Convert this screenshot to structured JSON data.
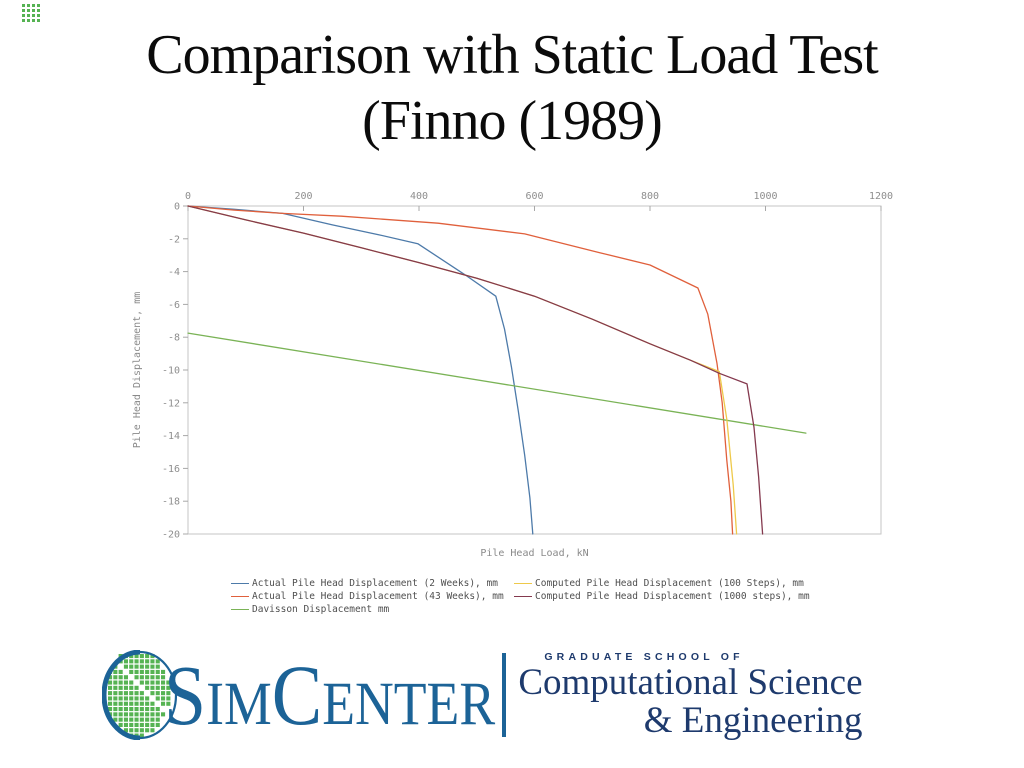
{
  "slide": {
    "title_line1": "Comparison with Static Load Test",
    "title_line2": "(Finno (1989)"
  },
  "chart_data": {
    "type": "line",
    "title": "",
    "xlabel": "Pile Head Load, kN",
    "ylabel": "Pile Head Displacement, mm",
    "xlim": [
      0,
      1200
    ],
    "ylim": [
      -20,
      0
    ],
    "x_ticks": [
      0,
      200,
      400,
      600,
      800,
      1000,
      1200
    ],
    "y_ticks": [
      0,
      -2,
      -4,
      -6,
      -8,
      -10,
      -12,
      -14,
      -16,
      -18,
      -20
    ],
    "grid": false,
    "x_axis_position": "top",
    "legend_position": "bottom",
    "series": [
      {
        "name": "Actual Pile Head Displacement (2 Weeks), mm",
        "color": "#4d7aa9",
        "points": [
          [
            0,
            0
          ],
          [
            80,
            -0.2
          ],
          [
            164,
            -0.45
          ],
          [
            250,
            -1.15
          ],
          [
            330,
            -1.75
          ],
          [
            398,
            -2.3
          ],
          [
            480,
            -4.2
          ],
          [
            533,
            -5.5
          ],
          [
            548,
            -7.5
          ],
          [
            560,
            -9.8
          ],
          [
            572,
            -12.5
          ],
          [
            583,
            -15.2
          ],
          [
            592,
            -17.8
          ],
          [
            597,
            -20
          ]
        ]
      },
      {
        "name": "Actual Pile Head Displacement (43 Weeks), mm",
        "color": "#e0603c",
        "points": [
          [
            0,
            0
          ],
          [
            80,
            -0.25
          ],
          [
            164,
            -0.45
          ],
          [
            266,
            -0.62
          ],
          [
            433,
            -1.05
          ],
          [
            583,
            -1.7
          ],
          [
            713,
            -2.85
          ],
          [
            800,
            -3.6
          ],
          [
            883,
            -5.0
          ],
          [
            900,
            -6.6
          ],
          [
            916,
            -9.6
          ],
          [
            925,
            -12
          ],
          [
            933,
            -15.5
          ],
          [
            940,
            -18
          ],
          [
            943,
            -20
          ]
        ]
      },
      {
        "name": "Davisson Displacement mm",
        "color": "#7ab356",
        "points": [
          [
            0,
            -7.75
          ],
          [
            1070,
            -13.85
          ]
        ]
      },
      {
        "name": "Computed Pile Head Displacement (100 Steps), mm",
        "color": "#eec94a",
        "points": [
          [
            0,
            0
          ],
          [
            100,
            -0.85
          ],
          [
            200,
            -1.65
          ],
          [
            300,
            -2.55
          ],
          [
            400,
            -3.45
          ],
          [
            500,
            -4.4
          ],
          [
            600,
            -5.5
          ],
          [
            700,
            -6.9
          ],
          [
            800,
            -8.4
          ],
          [
            870,
            -9.4
          ],
          [
            920,
            -10.1
          ],
          [
            933,
            -13
          ],
          [
            944,
            -17
          ],
          [
            950,
            -20
          ]
        ]
      },
      {
        "name": "Computed Pile Head Displacement (1000 steps), mm",
        "color": "#84394e",
        "points": [
          [
            0,
            0
          ],
          [
            100,
            -0.85
          ],
          [
            200,
            -1.65
          ],
          [
            300,
            -2.55
          ],
          [
            400,
            -3.45
          ],
          [
            500,
            -4.4
          ],
          [
            600,
            -5.5
          ],
          [
            700,
            -6.9
          ],
          [
            800,
            -8.4
          ],
          [
            870,
            -9.4
          ],
          [
            920,
            -10.2
          ],
          [
            968,
            -10.85
          ],
          [
            980,
            -13.5
          ],
          [
            988,
            -16.5
          ],
          [
            995,
            -20
          ]
        ]
      }
    ]
  },
  "legend": {
    "items": [
      {
        "label": "Actual Pile Head Displacement (2 Weeks), mm",
        "color": "#4d7aa9"
      },
      {
        "label": "Computed Pile Head Displacement (100 Steps), mm",
        "color": "#eec94a"
      },
      {
        "label": "Actual Pile Head Displacement (43 Weeks), mm",
        "color": "#e0603c"
      },
      {
        "label": "Computed Pile Head Displacement (1000 steps), mm",
        "color": "#84394e"
      },
      {
        "label": "Davisson Displacement mm",
        "color": "#7ab356"
      }
    ]
  },
  "logo": {
    "wordmark_s": "S",
    "wordmark_im": "IM",
    "wordmark_c": "C",
    "wordmark_enter": "ENTER",
    "school_line": "GRADUATE SCHOOL OF",
    "dept_line1": "Computational Science",
    "dept_line2": "& Engineering",
    "colors": {
      "brand_blue": "#1c6397",
      "navy": "#1e3a6d",
      "green": "#56b353"
    }
  }
}
